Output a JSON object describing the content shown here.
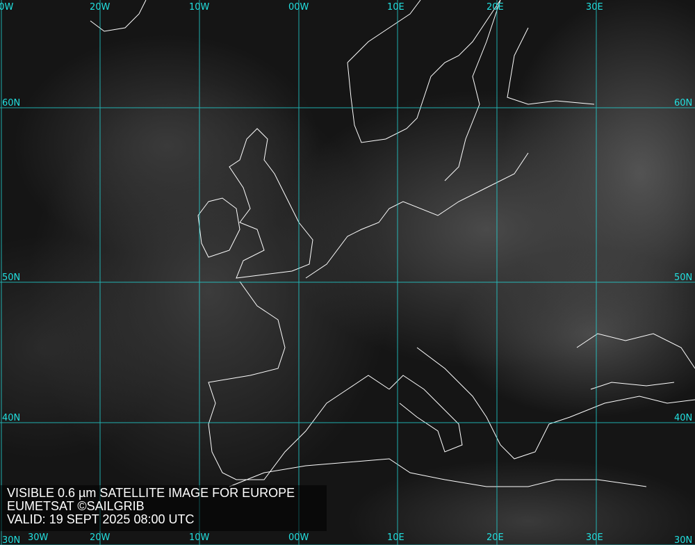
{
  "map": {
    "grid_color": "#22e0e0",
    "coastline_color": "#ffffff",
    "longitude_labels": [
      "30W",
      "20W",
      "10W",
      "00W",
      "10E",
      "20E",
      "30E"
    ],
    "latitude_labels": [
      "60N",
      "50N",
      "40N",
      "30N"
    ]
  },
  "caption": {
    "line1": "VISIBLE 0.6 µm SATELLITE IMAGE FOR EUROPE",
    "line2": "EUMETSAT ©SAILGRIB",
    "line3": "VALID:  19 SEPT 2025 08:00 UTC"
  }
}
